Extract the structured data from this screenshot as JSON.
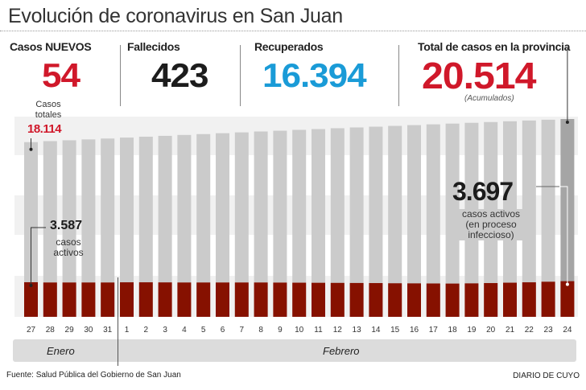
{
  "title": "Evolución de coronavirus en San Juan",
  "stats": [
    {
      "label": "Casos NUEVOS",
      "value": "54",
      "color": "#d0182a"
    },
    {
      "label": "Fallecidos",
      "value": "423",
      "color": "#1c1c1c"
    },
    {
      "label": "Recuperados",
      "value": "16.394",
      "color": "#1a9bd7"
    },
    {
      "label": "Total de casos en la provincia",
      "value": "20.514",
      "color": "#d0182a",
      "note": "(Acumulados)"
    }
  ],
  "annotations": {
    "start_total_label_1": "Casos",
    "start_total_label_2": "totales",
    "start_total_value": "18.114",
    "start_active_value": "3.587",
    "start_active_label_1": "casos",
    "start_active_label_2": "activos",
    "end_active_value": "3.697",
    "end_active_label_1": "casos activos",
    "end_active_label_2": "(en proceso",
    "end_active_label_3": "infeccioso)"
  },
  "chart_data": {
    "type": "bar",
    "categories": [
      "27",
      "28",
      "29",
      "30",
      "31",
      "1",
      "2",
      "3",
      "4",
      "5",
      "6",
      "7",
      "8",
      "9",
      "10",
      "11",
      "12",
      "13",
      "14",
      "15",
      "16",
      "17",
      "18",
      "19",
      "20",
      "21",
      "22",
      "23",
      "24"
    ],
    "series": [
      {
        "name": "Casos totales",
        "color": "#cbcbcb",
        "highlight_color": "#a5a5a5",
        "values": [
          18114,
          18220,
          18310,
          18400,
          18490,
          18590,
          18680,
          18770,
          18860,
          18950,
          19040,
          19130,
          19220,
          19300,
          19390,
          19470,
          19560,
          19640,
          19720,
          19800,
          19880,
          19960,
          20040,
          20120,
          20200,
          20280,
          20360,
          20440,
          20514
        ]
      },
      {
        "name": "casos activos",
        "color": "#861100",
        "values": [
          3587,
          3560,
          3560,
          3560,
          3560,
          3580,
          3580,
          3570,
          3560,
          3560,
          3560,
          3560,
          3560,
          3550,
          3540,
          3530,
          3520,
          3510,
          3500,
          3480,
          3470,
          3460,
          3450,
          3470,
          3500,
          3540,
          3580,
          3640,
          3697
        ]
      }
    ],
    "months": [
      {
        "label": "Enero"
      },
      {
        "label": "Febrero"
      }
    ],
    "ylim": [
      0,
      21000
    ]
  },
  "footer": {
    "source": "Fuente: Salud Pública del Gobierno de San Juan",
    "brand": "DIARIO DE CUYO"
  }
}
